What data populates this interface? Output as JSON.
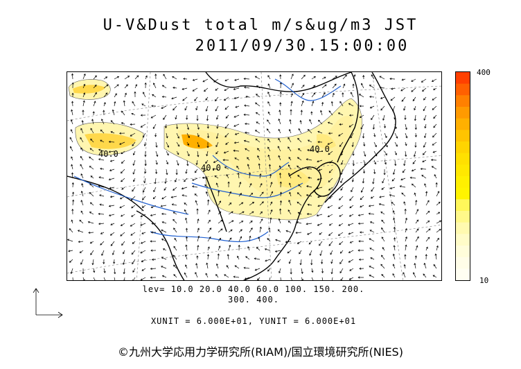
{
  "title": "U-V&Dust total m/s&ug/m3 JST",
  "timestamp": "2011/09/30.15:00:00",
  "colorbar": {
    "max_label": "400",
    "min_label": "10",
    "colors": [
      "#ff4000",
      "#ff6000",
      "#ff8000",
      "#ff9a00",
      "#ffb000",
      "#ffc400",
      "#ffd400",
      "#ffe000",
      "#ffe800",
      "#fff000",
      "#fff400",
      "#fff75a",
      "#fff98a",
      "#fffab0",
      "#fffcc8",
      "#fffdda",
      "#fffde8",
      "#fffef2"
    ]
  },
  "levels_line1": "lev= 10.0 20.0 40.0 60.0 100. 150. 200.",
  "levels_line2": "300. 400.",
  "units": "XUNIT = 6.000E+01, YUNIT = 6.000E+01",
  "copyright": "©九州大学応用力学研究所(RIAM)/国立環境研究所(NIES)",
  "contour_labels": [
    "40.0",
    "40.0",
    "40.0"
  ]
}
